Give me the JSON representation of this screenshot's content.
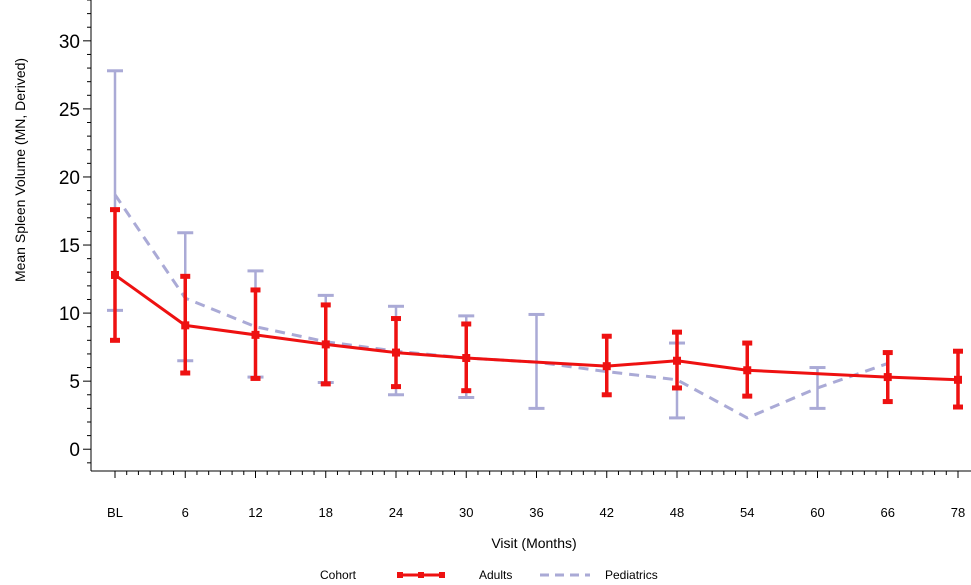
{
  "chart_data": {
    "type": "line",
    "title": "",
    "xlabel": "Visit (Months)",
    "ylabel": "Mean Spleen Volume (MN, Derived)",
    "categories": [
      "BL",
      "6",
      "12",
      "18",
      "24",
      "30",
      "36",
      "42",
      "48",
      "54",
      "60",
      "66",
      "78"
    ],
    "ylim": [
      -1.6,
      33
    ],
    "yticks": [
      0,
      5,
      10,
      15,
      20,
      25,
      30
    ],
    "yticks_labels": [
      "0",
      "5",
      "10",
      "15",
      "20",
      "25",
      "30"
    ],
    "grid": false,
    "legend": {
      "title": "Cohort",
      "placement": "bottom"
    },
    "series": [
      {
        "name": "Adults",
        "color": "#ee1111",
        "line_style": "solid",
        "points": [
          {
            "x": "BL",
            "y": 12.8,
            "low": 8.0,
            "high": 17.6
          },
          {
            "x": "6",
            "y": 9.1,
            "low": 5.6,
            "high": 12.7
          },
          {
            "x": "12",
            "y": 8.4,
            "low": 5.2,
            "high": 11.7
          },
          {
            "x": "18",
            "y": 7.7,
            "low": 4.8,
            "high": 10.6
          },
          {
            "x": "24",
            "y": 7.1,
            "low": 4.6,
            "high": 9.6
          },
          {
            "x": "30",
            "y": 6.7,
            "low": 4.3,
            "high": 9.2
          },
          {
            "x": "42",
            "y": 6.1,
            "low": 4.0,
            "high": 8.3
          },
          {
            "x": "48",
            "y": 6.5,
            "low": 4.5,
            "high": 8.6
          },
          {
            "x": "54",
            "y": 5.8,
            "low": 3.9,
            "high": 7.8
          },
          {
            "x": "66",
            "y": 5.3,
            "low": 3.5,
            "high": 7.1
          },
          {
            "x": "78",
            "y": 5.1,
            "low": 3.1,
            "high": 7.2
          }
        ]
      },
      {
        "name": "Pediatrics",
        "color": "#aaaad6",
        "line_style": "dashed",
        "points": [
          {
            "x": "BL",
            "y": 18.7,
            "low": 10.2,
            "high": 27.8
          },
          {
            "x": "6",
            "y": 11.1,
            "low": 6.5,
            "high": 15.9
          },
          {
            "x": "12",
            "y": 9.0,
            "low": 5.3,
            "high": 13.1
          },
          {
            "x": "18",
            "y": 7.9,
            "low": 4.9,
            "high": 11.3
          },
          {
            "x": "24",
            "y": 7.2,
            "low": 4.0,
            "high": 10.5
          },
          {
            "x": "30",
            "y": 6.7,
            "low": 3.8,
            "high": 9.8
          },
          {
            "x": "36",
            "y": 6.4,
            "low": 3.0,
            "high": 9.9
          },
          {
            "x": "42",
            "y": 5.7,
            "low": null,
            "high": null
          },
          {
            "x": "48",
            "y": 5.1,
            "low": 2.3,
            "high": 7.8
          },
          {
            "x": "54",
            "y": 2.3,
            "low": null,
            "high": null
          },
          {
            "x": "60",
            "y": 4.5,
            "low": 3.0,
            "high": 6.0
          },
          {
            "x": "66",
            "y": 6.3,
            "low": null,
            "high": null
          }
        ]
      }
    ]
  }
}
